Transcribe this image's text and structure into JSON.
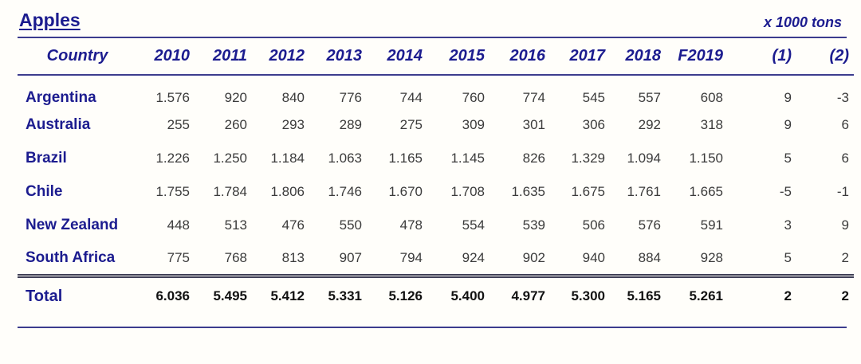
{
  "page": {
    "title": "Apples",
    "unit_label": "x 1000 tons"
  },
  "table": {
    "columns": [
      "Country",
      "2010",
      "2011",
      "2012",
      "2013",
      "2014",
      "2015",
      "2016",
      "2017",
      "2018",
      "F2019",
      "(1)",
      "(2)"
    ],
    "rows": [
      {
        "country": "Argentina",
        "values": [
          "1.576",
          "920",
          "840",
          "776",
          "744",
          "760",
          "774",
          "545",
          "557",
          "608",
          "9",
          "-3"
        ]
      },
      {
        "country": "Australia",
        "values": [
          "255",
          "260",
          "293",
          "289",
          "275",
          "309",
          "301",
          "306",
          "292",
          "318",
          "9",
          "6"
        ]
      },
      {
        "country": "Brazil",
        "values": [
          "1.226",
          "1.250",
          "1.184",
          "1.063",
          "1.165",
          "1.145",
          "826",
          "1.329",
          "1.094",
          "1.150",
          "5",
          "6"
        ]
      },
      {
        "country": "Chile",
        "values": [
          "1.755",
          "1.784",
          "1.806",
          "1.746",
          "1.670",
          "1.708",
          "1.635",
          "1.675",
          "1.761",
          "1.665",
          "-5",
          "-1"
        ]
      },
      {
        "country": "New Zealand",
        "values": [
          "448",
          "513",
          "476",
          "550",
          "478",
          "554",
          "539",
          "506",
          "576",
          "591",
          "3",
          "9"
        ]
      },
      {
        "country": "South Africa",
        "values": [
          "775",
          "768",
          "813",
          "907",
          "794",
          "924",
          "902",
          "940",
          "884",
          "928",
          "5",
          "2"
        ]
      }
    ],
    "total": {
      "label": "Total",
      "values": [
        "6.036",
        "5.495",
        "5.412",
        "5.331",
        "5.126",
        "5.400",
        "4.977",
        "5.300",
        "5.165",
        "5.261",
        "2",
        "2"
      ]
    }
  },
  "colors": {
    "navy_text": "#1c1c8f",
    "rule": "#3c3c8e",
    "value_text": "#3b3b3b",
    "background": "#fffefa"
  },
  "chart_data": {
    "type": "table",
    "title": "Apples",
    "unit": "x 1000 tons",
    "categories": [
      "2010",
      "2011",
      "2012",
      "2013",
      "2014",
      "2015",
      "2016",
      "2017",
      "2018",
      "F2019",
      "(1)",
      "(2)"
    ],
    "series": [
      {
        "name": "Argentina",
        "values": [
          1576,
          920,
          840,
          776,
          744,
          760,
          774,
          545,
          557,
          608,
          9,
          -3
        ]
      },
      {
        "name": "Australia",
        "values": [
          255,
          260,
          293,
          289,
          275,
          309,
          301,
          306,
          292,
          318,
          9,
          6
        ]
      },
      {
        "name": "Brazil",
        "values": [
          1226,
          1250,
          1184,
          1063,
          1165,
          1145,
          826,
          1329,
          1094,
          1150,
          5,
          6
        ]
      },
      {
        "name": "Chile",
        "values": [
          1755,
          1784,
          1806,
          1746,
          1670,
          1708,
          1635,
          1675,
          1761,
          1665,
          -5,
          -1
        ]
      },
      {
        "name": "New Zealand",
        "values": [
          448,
          513,
          476,
          550,
          478,
          554,
          539,
          506,
          576,
          591,
          3,
          9
        ]
      },
      {
        "name": "South Africa",
        "values": [
          775,
          768,
          813,
          907,
          794,
          924,
          902,
          940,
          884,
          928,
          5,
          2
        ]
      }
    ],
    "total": {
      "name": "Total",
      "values": [
        6036,
        5495,
        5412,
        5331,
        5126,
        5400,
        4977,
        5300,
        5165,
        5261,
        2,
        2
      ]
    }
  }
}
